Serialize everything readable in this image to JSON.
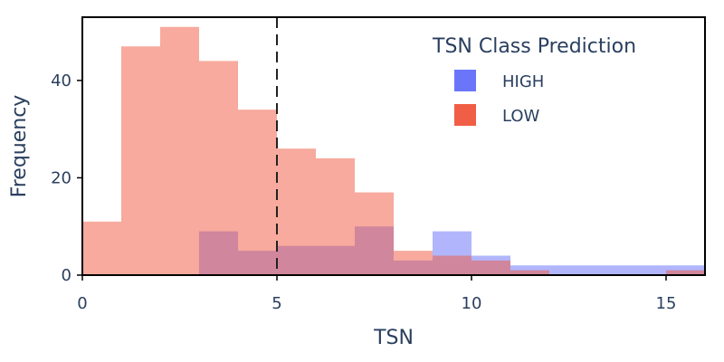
{
  "chart_data": {
    "type": "bar",
    "subtype": "overlaid-histogram",
    "xlabel": "TSN",
    "ylabel": "Frequency",
    "xlim": [
      0,
      16
    ],
    "ylim": [
      0,
      53
    ],
    "x_ticks": [
      0,
      5,
      10,
      15
    ],
    "y_ticks": [
      0,
      20,
      40
    ],
    "bin_width": 1,
    "reference_line": {
      "x": 5,
      "style": "dashed"
    },
    "grid": false,
    "legend": {
      "title": "TSN Class Prediction",
      "position": "top-right"
    },
    "series": [
      {
        "name": "HIGH",
        "color": "#636efa",
        "opacity": 0.5,
        "bins": [
          {
            "x0": 3,
            "value": 9
          },
          {
            "x0": 4,
            "value": 5
          },
          {
            "x0": 5,
            "value": 6
          },
          {
            "x0": 6,
            "value": 6
          },
          {
            "x0": 7,
            "value": 10
          },
          {
            "x0": 8,
            "value": 3
          },
          {
            "x0": 9,
            "value": 9
          },
          {
            "x0": 10,
            "value": 4
          },
          {
            "x0": 11,
            "value": 2
          },
          {
            "x0": 12,
            "value": 2
          },
          {
            "x0": 13,
            "value": 2
          },
          {
            "x0": 14,
            "value": 2
          },
          {
            "x0": 15,
            "value": 2
          }
        ]
      },
      {
        "name": "LOW",
        "color": "#ef553b",
        "opacity": 0.5,
        "bins": [
          {
            "x0": 0,
            "value": 11
          },
          {
            "x0": 1,
            "value": 47
          },
          {
            "x0": 2,
            "value": 51
          },
          {
            "x0": 3,
            "value": 44
          },
          {
            "x0": 4,
            "value": 34
          },
          {
            "x0": 5,
            "value": 26
          },
          {
            "x0": 6,
            "value": 24
          },
          {
            "x0": 7,
            "value": 17
          },
          {
            "x0": 8,
            "value": 5
          },
          {
            "x0": 9,
            "value": 4
          },
          {
            "x0": 10,
            "value": 3
          },
          {
            "x0": 11,
            "value": 1
          },
          {
            "x0": 15,
            "value": 1
          }
        ]
      }
    ]
  }
}
